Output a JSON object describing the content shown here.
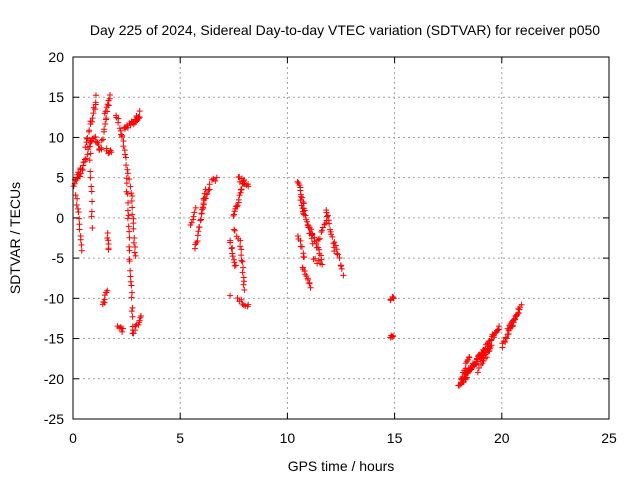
{
  "chart_data": {
    "type": "scatter",
    "title": "Day 225 of 2024, Sidereal Day-to-day VTEC variation (SDTVAR) for receiver p050",
    "xlabel": "GPS time / hours",
    "ylabel": "SDTVAR / TECUs",
    "xlim": [
      0,
      25
    ],
    "ylim": [
      -25,
      20
    ],
    "xticks": [
      0,
      5,
      10,
      15,
      20,
      25
    ],
    "yticks": [
      -25,
      -20,
      -15,
      -10,
      -5,
      0,
      5,
      10,
      15,
      20
    ],
    "grid": true,
    "marker": "+",
    "color": "#ff0000",
    "segments": [
      {
        "x0": 0.0,
        "y0": 4.0,
        "x1": 0.35,
        "y1": 6.0,
        "n": 12
      },
      {
        "x0": 0.15,
        "y0": 3.0,
        "x1": 0.4,
        "y1": -4.0,
        "n": 12
      },
      {
        "x0": 0.3,
        "y0": 5.0,
        "x1": 0.9,
        "y1": 10.0,
        "n": 18
      },
      {
        "x0": 0.6,
        "y0": 9.0,
        "x1": 1.1,
        "y1": 15.0,
        "n": 16
      },
      {
        "x0": 0.8,
        "y0": 8.0,
        "x1": 0.9,
        "y1": -1.0,
        "n": 10
      },
      {
        "x0": 1.0,
        "y0": 10.0,
        "x1": 1.25,
        "y1": 8.5,
        "n": 8
      },
      {
        "x0": 1.3,
        "y0": 8.5,
        "x1": 1.6,
        "y1": 13.0,
        "n": 10
      },
      {
        "x0": 1.5,
        "y0": 13.0,
        "x1": 1.75,
        "y1": 15.0,
        "n": 8
      },
      {
        "x0": 1.55,
        "y0": 8.5,
        "x1": 1.8,
        "y1": 8.0,
        "n": 6
      },
      {
        "x0": 1.6,
        "y0": -2.0,
        "x1": 1.65,
        "y1": -4.0,
        "n": 6
      },
      {
        "x0": 1.4,
        "y0": -11.0,
        "x1": 1.6,
        "y1": -9.0,
        "n": 8
      },
      {
        "x0": 2.0,
        "y0": 13.0,
        "x1": 2.3,
        "y1": 10.0,
        "n": 8
      },
      {
        "x0": 2.1,
        "y0": -13.5,
        "x1": 2.35,
        "y1": -14.0,
        "n": 6
      },
      {
        "x0": 2.3,
        "y0": 10.0,
        "x1": 2.6,
        "y1": 5.0,
        "n": 10
      },
      {
        "x0": 2.4,
        "y0": 11.0,
        "x1": 3.1,
        "y1": 12.5,
        "n": 16
      },
      {
        "x0": 2.5,
        "y0": 5.0,
        "x1": 2.8,
        "y1": -14.0,
        "n": 26
      },
      {
        "x0": 2.7,
        "y0": 4.0,
        "x1": 2.9,
        "y1": -5.0,
        "n": 14
      },
      {
        "x0": 2.8,
        "y0": -14.5,
        "x1": 3.2,
        "y1": -12.0,
        "n": 10
      },
      {
        "x0": 2.9,
        "y0": 12.0,
        "x1": 3.1,
        "y1": 13.0,
        "n": 6
      },
      {
        "x0": 5.5,
        "y0": -1.0,
        "x1": 5.7,
        "y1": 1.0,
        "n": 6
      },
      {
        "x0": 5.7,
        "y0": -4.0,
        "x1": 6.2,
        "y1": 3.5,
        "n": 18
      },
      {
        "x0": 6.0,
        "y0": 1.0,
        "x1": 6.4,
        "y1": 4.0,
        "n": 10
      },
      {
        "x0": 6.5,
        "y0": 4.5,
        "x1": 6.7,
        "y1": 5.0,
        "n": 4
      },
      {
        "x0": 7.5,
        "y0": 0.0,
        "x1": 8.0,
        "y1": 5.0,
        "n": 18
      },
      {
        "x0": 7.7,
        "y0": 5.0,
        "x1": 8.2,
        "y1": 4.0,
        "n": 10
      },
      {
        "x0": 7.3,
        "y0": -3.0,
        "x1": 7.6,
        "y1": -6.0,
        "n": 10
      },
      {
        "x0": 7.8,
        "y0": -3.0,
        "x1": 8.0,
        "y1": -9.0,
        "n": 12
      },
      {
        "x0": 7.7,
        "y0": -10.0,
        "x1": 8.2,
        "y1": -11.0,
        "n": 8
      },
      {
        "x0": 7.3,
        "y0": -9.5,
        "x1": 7.35,
        "y1": -9.5,
        "n": 1
      },
      {
        "x0": 7.5,
        "y0": -1.5,
        "x1": 7.7,
        "y1": -2.5,
        "n": 4
      },
      {
        "x0": 10.5,
        "y0": 4.5,
        "x1": 10.8,
        "y1": 1.0,
        "n": 12
      },
      {
        "x0": 10.6,
        "y0": 2.0,
        "x1": 11.2,
        "y1": -3.0,
        "n": 16
      },
      {
        "x0": 10.5,
        "y0": -2.0,
        "x1": 10.8,
        "y1": -5.0,
        "n": 8
      },
      {
        "x0": 10.7,
        "y0": -6.0,
        "x1": 11.1,
        "y1": -8.5,
        "n": 10
      },
      {
        "x0": 11.0,
        "y0": -1.0,
        "x1": 11.6,
        "y1": -5.0,
        "n": 14
      },
      {
        "x0": 11.4,
        "y0": -3.0,
        "x1": 11.9,
        "y1": 0.0,
        "n": 10
      },
      {
        "x0": 11.8,
        "y0": 1.0,
        "x1": 12.2,
        "y1": -4.0,
        "n": 12
      },
      {
        "x0": 12.2,
        "y0": -3.0,
        "x1": 12.6,
        "y1": -7.0,
        "n": 10
      },
      {
        "x0": 11.2,
        "y0": -5.0,
        "x1": 11.6,
        "y1": -6.0,
        "n": 6
      },
      {
        "x0": 14.8,
        "y0": -10.0,
        "x1": 14.95,
        "y1": -10.2,
        "n": 5
      },
      {
        "x0": 14.8,
        "y0": -15.0,
        "x1": 14.95,
        "y1": -14.6,
        "n": 5
      },
      {
        "x0": 18.0,
        "y0": -21.0,
        "x1": 19.9,
        "y1": -13.5,
        "n": 60
      },
      {
        "x0": 18.1,
        "y0": -20.0,
        "x1": 19.5,
        "y1": -16.0,
        "n": 30
      },
      {
        "x0": 18.2,
        "y0": -19.0,
        "x1": 18.5,
        "y1": -17.0,
        "n": 8
      },
      {
        "x0": 18.9,
        "y0": -19.0,
        "x1": 19.5,
        "y1": -16.0,
        "n": 12
      },
      {
        "x0": 20.0,
        "y0": -16.0,
        "x1": 20.9,
        "y1": -11.0,
        "n": 22
      },
      {
        "x0": 20.3,
        "y0": -14.0,
        "x1": 20.8,
        "y1": -11.5,
        "n": 12
      }
    ]
  }
}
